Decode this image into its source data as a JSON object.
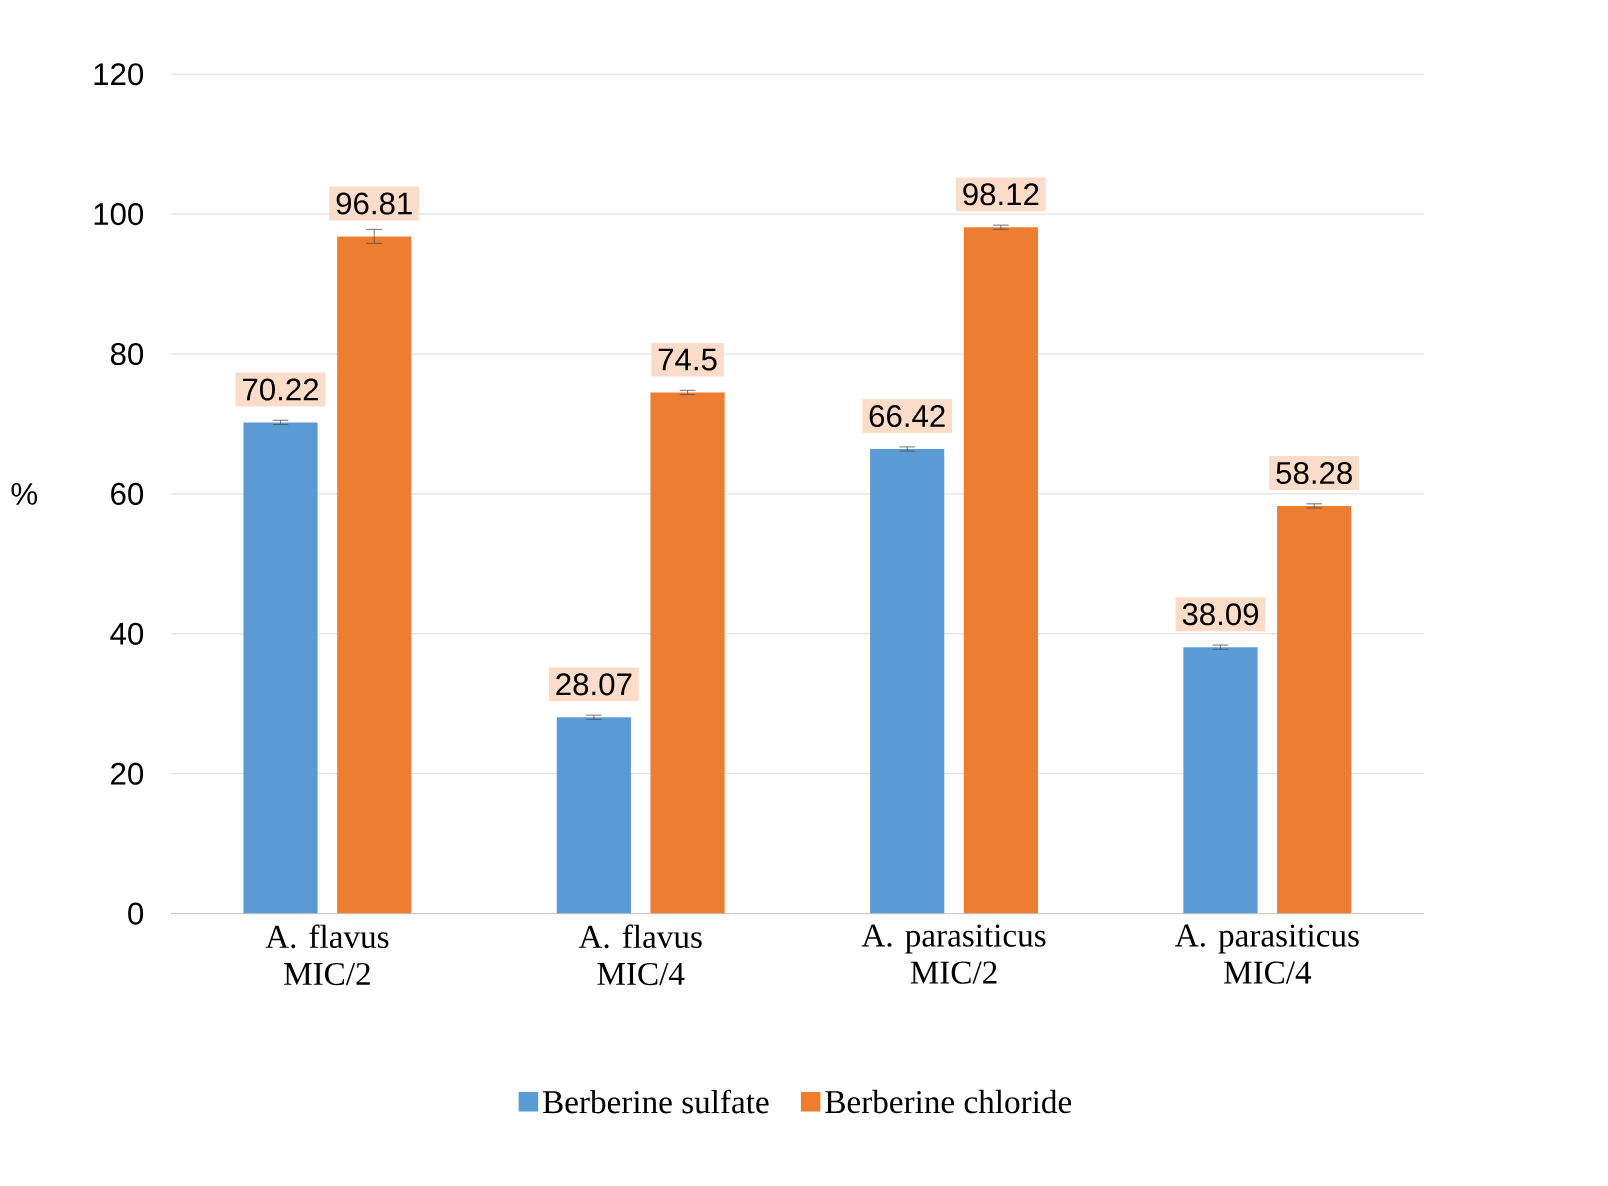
{
  "chart_data": {
    "type": "bar",
    "ylabel": "%",
    "categories": [
      "A. flavus MIC/2",
      "A. flavus MIC/4",
      "A. parasiticus MIC/2",
      "A. parasiticus MIC/4"
    ],
    "series": [
      {
        "name": "Berberine sulfate",
        "color": "#5b9bd5",
        "values": [
          70.22,
          28.07,
          66.42,
          38.09
        ],
        "errors": [
          0.3,
          0.3,
          0.3,
          0.3
        ]
      },
      {
        "name": "Berberine chloride",
        "color": "#ed7d31",
        "values": [
          96.81,
          74.5,
          98.12,
          58.28
        ],
        "errors": [
          1,
          0.3,
          0.3,
          0.3
        ]
      }
    ],
    "ylim": [
      0,
      120
    ],
    "yticks": [
      0,
      20,
      40,
      60,
      80,
      100,
      120
    ],
    "grid": "y",
    "legend": "bottom",
    "data_labels": true
  }
}
